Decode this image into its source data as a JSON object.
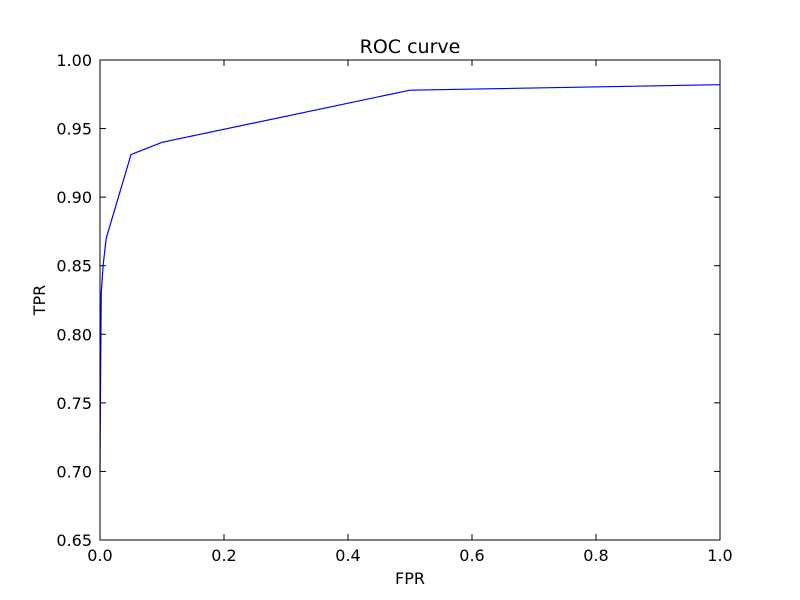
{
  "chart_data": {
    "type": "line",
    "title": "ROC curve",
    "xlabel": "FPR",
    "ylabel": "TPR",
    "xlim": [
      0.0,
      1.0
    ],
    "ylim": [
      0.65,
      1.0
    ],
    "xticks": [
      0.0,
      0.2,
      0.4,
      0.6,
      0.8,
      1.0
    ],
    "xtick_labels": [
      "0.0",
      "0.2",
      "0.4",
      "0.6",
      "0.8",
      "1.0"
    ],
    "yticks": [
      0.65,
      0.7,
      0.75,
      0.8,
      0.85,
      0.9,
      0.95,
      1.0
    ],
    "ytick_labels": [
      "0.65",
      "0.70",
      "0.75",
      "0.80",
      "0.85",
      "0.90",
      "0.95",
      "1.00"
    ],
    "grid": false,
    "series": [
      {
        "color": "#0000ff",
        "x": [
          0.0,
          0.001,
          0.002,
          0.005,
          0.01,
          0.05,
          0.1,
          0.5,
          1.0
        ],
        "y": [
          0.7,
          0.77,
          0.83,
          0.85,
          0.87,
          0.931,
          0.94,
          0.978,
          0.982
        ]
      }
    ]
  }
}
